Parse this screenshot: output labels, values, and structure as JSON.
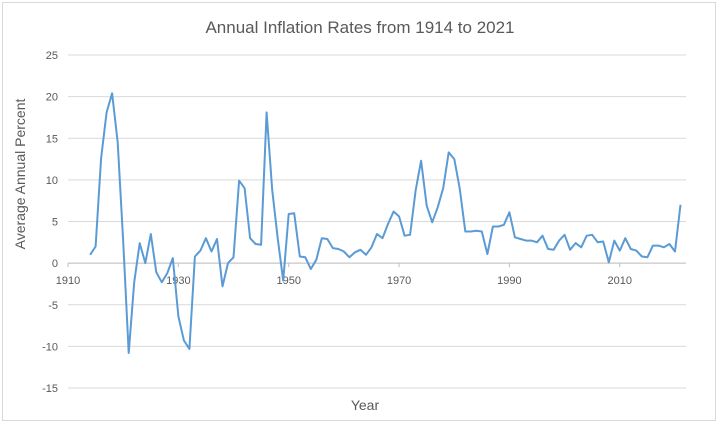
{
  "chart_data": {
    "type": "line",
    "title": "Annual Inflation Rates from 1914 to 2021",
    "xlabel": "Year",
    "ylabel": "Average Annual Percent",
    "xlim": [
      1910,
      2022
    ],
    "ylim": [
      -15,
      25
    ],
    "x_ticks": [
      1910,
      1930,
      1950,
      1970,
      1990,
      2010
    ],
    "y_ticks": [
      -15,
      -10,
      -5,
      0,
      5,
      10,
      15,
      20,
      25
    ],
    "grid": true,
    "legend": "none",
    "series": [
      {
        "color": "#5b9bd5",
        "x": [
          1914,
          1915,
          1916,
          1917,
          1918,
          1919,
          1920,
          1921,
          1922,
          1923,
          1924,
          1925,
          1926,
          1927,
          1928,
          1929,
          1930,
          1931,
          1932,
          1933,
          1934,
          1935,
          1936,
          1937,
          1938,
          1939,
          1940,
          1941,
          1942,
          1943,
          1944,
          1945,
          1946,
          1947,
          1948,
          1949,
          1950,
          1951,
          1952,
          1953,
          1954,
          1955,
          1956,
          1957,
          1958,
          1959,
          1960,
          1961,
          1962,
          1963,
          1964,
          1965,
          1966,
          1967,
          1968,
          1969,
          1970,
          1971,
          1972,
          1973,
          1974,
          1975,
          1976,
          1977,
          1978,
          1979,
          1980,
          1981,
          1982,
          1983,
          1984,
          1985,
          1986,
          1987,
          1988,
          1989,
          1990,
          1991,
          1992,
          1993,
          1994,
          1995,
          1996,
          1997,
          1998,
          1999,
          2000,
          2001,
          2002,
          2003,
          2004,
          2005,
          2006,
          2007,
          2008,
          2009,
          2010,
          2011,
          2012,
          2013,
          2014,
          2015,
          2016,
          2017,
          2018,
          2019,
          2020,
          2021
        ],
        "y": [
          1.0,
          2.0,
          12.6,
          18.1,
          20.4,
          14.5,
          2.6,
          -10.8,
          -2.3,
          2.4,
          0.0,
          3.5,
          -1.1,
          -2.3,
          -1.2,
          0.6,
          -6.4,
          -9.3,
          -10.3,
          0.8,
          1.5,
          3.0,
          1.4,
          2.9,
          -2.8,
          0.0,
          0.7,
          9.9,
          9.0,
          3.0,
          2.3,
          2.2,
          18.1,
          8.8,
          3.0,
          -2.1,
          5.9,
          6.0,
          0.8,
          0.7,
          -0.7,
          0.4,
          3.0,
          2.9,
          1.8,
          1.7,
          1.4,
          0.7,
          1.3,
          1.6,
          1.0,
          1.9,
          3.5,
          3.0,
          4.7,
          6.2,
          5.6,
          3.3,
          3.4,
          8.7,
          12.3,
          6.9,
          4.9,
          6.7,
          9.0,
          13.3,
          12.5,
          8.9,
          3.8,
          3.8,
          3.9,
          3.8,
          1.1,
          4.4,
          4.4,
          4.6,
          6.1,
          3.1,
          2.9,
          2.7,
          2.7,
          2.5,
          3.3,
          1.7,
          1.6,
          2.7,
          3.4,
          1.6,
          2.4,
          1.9,
          3.3,
          3.4,
          2.5,
          2.6,
          0.1,
          2.7,
          1.5,
          3.0,
          1.7,
          1.5,
          0.8,
          0.7,
          2.1,
          2.1,
          1.9,
          2.3,
          1.4,
          7.0
        ]
      }
    ]
  }
}
